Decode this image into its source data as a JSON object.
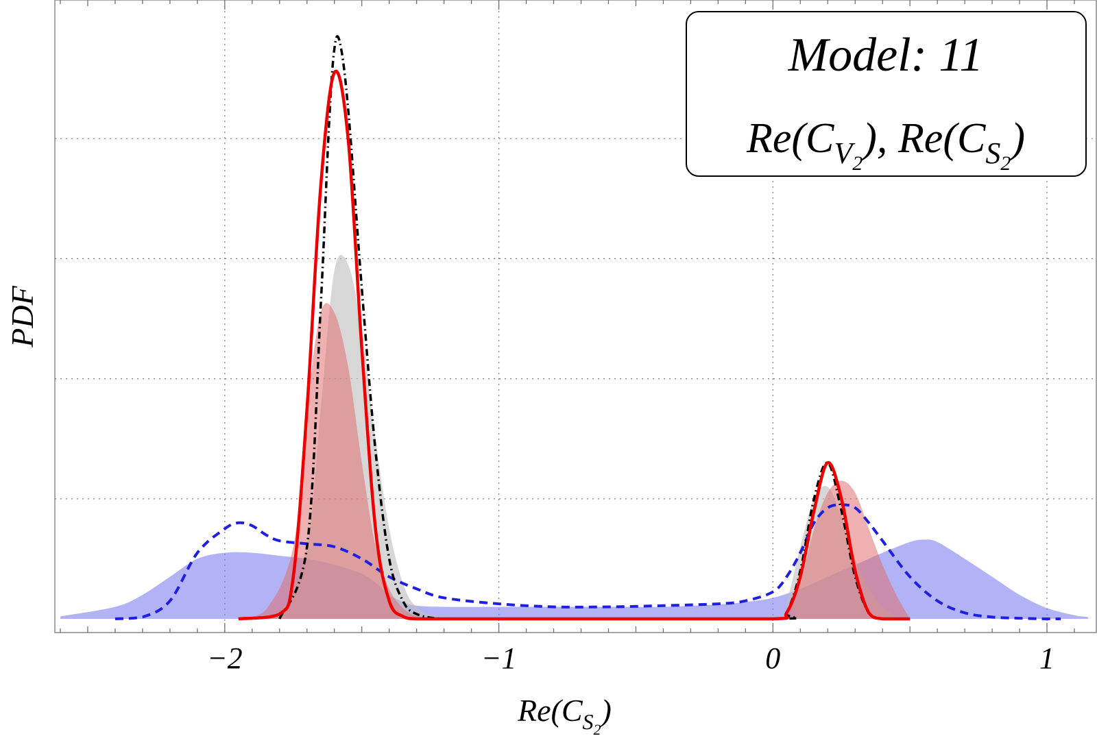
{
  "chart_data": {
    "type": "area",
    "xlabel": "Re(C",
    "xlabel_sub": "S",
    "xlabel_subsub": "2",
    "xlabel_close": ")",
    "ylabel": "PDF",
    "xlim": [
      -2.62,
      1.18
    ],
    "ylim": [
      0,
      1.0
    ],
    "grid": true,
    "x_ticks": [
      {
        "value": -2,
        "label": "−2"
      },
      {
        "value": -1,
        "label": "−1"
      },
      {
        "value": 0,
        "label": "0"
      },
      {
        "value": 1,
        "label": "1"
      }
    ],
    "y_gridlines": [
      0.2,
      0.4,
      0.6,
      0.8
    ],
    "legend_box": {
      "position": "top-right",
      "line1": "Model: 11",
      "line2": {
        "part1": "Re(C",
        "sub1": "V",
        "subsub1": "2",
        "close1": "),",
        "part2": " Re(C",
        "sub2": "S",
        "subsub2": "2",
        "close2": ")"
      }
    },
    "series": [
      {
        "name": "blue-filled",
        "style": "filled",
        "color": "#7b7bf0",
        "opacity": 0.58,
        "x": [
          -2.6,
          -2.4,
          -2.3,
          -2.2,
          -2.1,
          -2.0,
          -1.9,
          -1.8,
          -1.7,
          -1.6,
          -1.5,
          -1.45,
          -1.4,
          -1.35,
          -1.3,
          -1.2,
          -1.0,
          -0.8,
          -0.6,
          -0.4,
          -0.2,
          -0.1,
          0.0,
          0.1,
          0.2,
          0.3,
          0.4,
          0.5,
          0.55,
          0.6,
          0.7,
          0.8,
          0.9,
          1.0,
          1.1,
          1.15
        ],
        "y": [
          0.004,
          0.02,
          0.04,
          0.07,
          0.1,
          0.11,
          0.11,
          0.105,
          0.1,
          0.09,
          0.075,
          0.06,
          0.04,
          0.028,
          0.022,
          0.02,
          0.02,
          0.02,
          0.02,
          0.02,
          0.024,
          0.028,
          0.035,
          0.05,
          0.07,
          0.09,
          0.11,
          0.128,
          0.132,
          0.128,
          0.1,
          0.07,
          0.04,
          0.018,
          0.006,
          0.003
        ]
      },
      {
        "name": "gray-filled",
        "style": "filled",
        "color": "#bfbfbf",
        "opacity": 0.62,
        "x": [
          -1.9,
          -1.8,
          -1.7,
          -1.65,
          -1.6,
          -1.55,
          -1.5,
          -1.45,
          -1.4,
          -1.35,
          -1.3,
          -1.2,
          -1.0,
          0.0,
          0.05,
          0.1,
          0.15,
          0.2,
          0.25,
          0.3,
          0.35,
          0.4,
          0.45,
          0.5
        ],
        "y": [
          0.0,
          0.01,
          0.12,
          0.35,
          0.58,
          0.59,
          0.48,
          0.3,
          0.15,
          0.06,
          0.02,
          0.003,
          0.0,
          0.002,
          0.03,
          0.12,
          0.2,
          0.22,
          0.17,
          0.1,
          0.05,
          0.02,
          0.005,
          0.0
        ]
      },
      {
        "name": "red-filled",
        "style": "filled",
        "color": "#e06f6f",
        "opacity": 0.55,
        "x": [
          -1.95,
          -1.85,
          -1.75,
          -1.7,
          -1.65,
          -1.6,
          -1.55,
          -1.5,
          -1.45,
          -1.4,
          -1.35,
          -1.3,
          -1.2,
          -1.0,
          0.0,
          0.05,
          0.1,
          0.15,
          0.2,
          0.25,
          0.3,
          0.35,
          0.4,
          0.45,
          0.5
        ],
        "y": [
          0.0,
          0.015,
          0.12,
          0.35,
          0.51,
          0.51,
          0.42,
          0.26,
          0.12,
          0.05,
          0.018,
          0.005,
          0.0,
          0.0,
          0.0,
          0.01,
          0.06,
          0.15,
          0.21,
          0.23,
          0.21,
          0.15,
          0.09,
          0.04,
          0.0
        ]
      },
      {
        "name": "blue-dashed",
        "style": "dashed",
        "color": "#1f1fe0",
        "x": [
          -2.4,
          -2.3,
          -2.2,
          -2.1,
          -2.0,
          -1.95,
          -1.9,
          -1.85,
          -1.8,
          -1.7,
          -1.6,
          -1.5,
          -1.4,
          -1.3,
          -1.2,
          -1.0,
          -0.8,
          -0.6,
          -0.4,
          -0.2,
          -0.1,
          0.0,
          0.05,
          0.1,
          0.15,
          0.2,
          0.25,
          0.3,
          0.35,
          0.4,
          0.5,
          0.6,
          0.7,
          0.8,
          0.9,
          1.0,
          1.05
        ],
        "y": [
          0.0,
          0.003,
          0.03,
          0.11,
          0.15,
          0.16,
          0.155,
          0.14,
          0.13,
          0.125,
          0.12,
          0.1,
          0.07,
          0.05,
          0.035,
          0.025,
          0.02,
          0.02,
          0.022,
          0.025,
          0.03,
          0.045,
          0.07,
          0.11,
          0.16,
          0.185,
          0.19,
          0.185,
          0.16,
          0.13,
          0.07,
          0.03,
          0.01,
          0.003,
          0.001,
          0.0,
          0.0
        ]
      },
      {
        "name": "black-dashdot",
        "style": "dashdot",
        "color": "#000000",
        "x": [
          -1.8,
          -1.7,
          -1.65,
          -1.62,
          -1.6,
          -1.58,
          -1.55,
          -1.5,
          -1.45,
          -1.4,
          -1.35,
          -1.3,
          -1.2,
          -1.0,
          0.0,
          0.05,
          0.1,
          0.15,
          0.2,
          0.25,
          0.3,
          0.35,
          0.4
        ],
        "y": [
          0.0,
          0.12,
          0.52,
          0.82,
          0.95,
          0.96,
          0.85,
          0.55,
          0.28,
          0.1,
          0.03,
          0.008,
          0.0,
          0.0,
          0.0,
          0.01,
          0.08,
          0.2,
          0.26,
          0.18,
          0.07,
          0.01,
          0.0
        ]
      },
      {
        "name": "red-solid",
        "style": "solid",
        "color": "#ee0000",
        "x": [
          -1.95,
          -1.8,
          -1.75,
          -1.7,
          -1.65,
          -1.6,
          -1.55,
          -1.5,
          -1.45,
          -1.4,
          -1.35,
          -1.3,
          -1.2,
          -1.0,
          -0.5,
          0.0,
          0.05,
          0.1,
          0.15,
          0.2,
          0.25,
          0.3,
          0.35,
          0.4,
          0.5
        ],
        "y": [
          0.0,
          0.008,
          0.07,
          0.35,
          0.72,
          0.91,
          0.8,
          0.45,
          0.15,
          0.03,
          0.004,
          0.0,
          0.0,
          0.0,
          0.0,
          0.0,
          0.01,
          0.07,
          0.18,
          0.26,
          0.2,
          0.08,
          0.01,
          0.0,
          0.0
        ]
      }
    ]
  }
}
